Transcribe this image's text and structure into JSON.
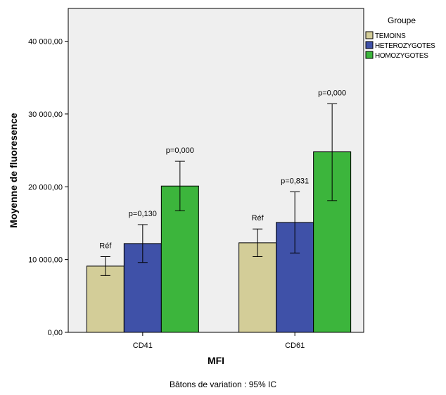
{
  "chart_data": {
    "type": "bar",
    "xlabel": "MFI",
    "ylabel": "Moyenne de fluoresence",
    "categories": [
      "CD41",
      "CD61"
    ],
    "ylim": [
      0,
      44500
    ],
    "yticks": [
      0,
      10000,
      20000,
      30000,
      40000
    ],
    "ytick_labels": [
      "0,00",
      "10 000,00",
      "20 000,00",
      "30 000,00",
      "40 000,00"
    ],
    "legend_title": "Groupe",
    "legend_position": "right",
    "footnote": "Bâtons de variation : 95% IC",
    "plot_background": "#efefef",
    "series": [
      {
        "name": "TEMOINS",
        "color": "#d3cd98",
        "values": [
          9100,
          12300
        ],
        "ci_low": [
          7800,
          10400
        ],
        "ci_high": [
          10400,
          14200
        ],
        "labels": [
          "Réf",
          "Réf"
        ]
      },
      {
        "name": "HETEROZYGOTES",
        "color": "#3f51a8",
        "values": [
          12200,
          15100
        ],
        "ci_low": [
          9600,
          10900
        ],
        "ci_high": [
          14800,
          19300
        ],
        "labels": [
          "p=0,130",
          "p=0,831"
        ]
      },
      {
        "name": "HOMOZYGOTES",
        "color": "#3cb53c",
        "values": [
          20100,
          24800
        ],
        "ci_low": [
          16700,
          18100
        ],
        "ci_high": [
          23500,
          31400
        ],
        "labels": [
          "p=0,000",
          "p=0,000"
        ]
      }
    ]
  }
}
